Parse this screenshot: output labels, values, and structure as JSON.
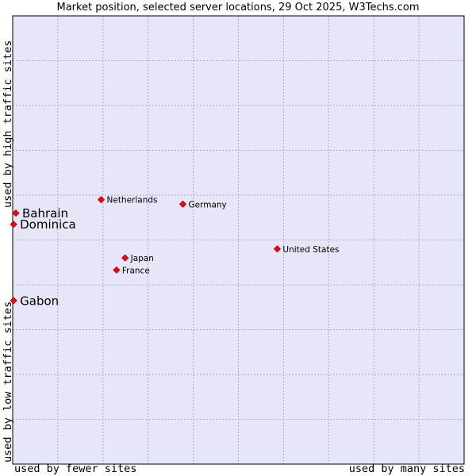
{
  "chart_data": {
    "type": "scatter",
    "title": "Market position, selected server locations, 29 Oct 2025, W3Techs.com",
    "xlabel_low": "used by fewer sites",
    "xlabel_high": "used by many sites",
    "ylabel_low": "used by low traffic sites",
    "ylabel_high": "used by high traffic sites",
    "xlim": [
      0,
      100
    ],
    "ylim": [
      0,
      100
    ],
    "grid": true,
    "points": [
      {
        "label": "Bahrain",
        "x": 0.7,
        "y": 56.0,
        "emphasis": true
      },
      {
        "label": "Dominica",
        "x": 0.2,
        "y": 53.5,
        "emphasis": true
      },
      {
        "label": "Gabon",
        "x": 0.2,
        "y": 36.5,
        "emphasis": true
      },
      {
        "label": "Netherlands",
        "x": 19.6,
        "y": 59.0,
        "emphasis": false
      },
      {
        "label": "Germany",
        "x": 37.7,
        "y": 58.0,
        "emphasis": false
      },
      {
        "label": "United States",
        "x": 58.6,
        "y": 48.0,
        "emphasis": false
      },
      {
        "label": "Japan",
        "x": 24.9,
        "y": 46.0,
        "emphasis": false
      },
      {
        "label": "France",
        "x": 23.0,
        "y": 43.3,
        "emphasis": false
      }
    ]
  },
  "colors": {
    "plot_bg": "#e6e6f8",
    "grid": "#aaaacc",
    "marker": "#ff0000",
    "marker_border": "#aa0000"
  }
}
